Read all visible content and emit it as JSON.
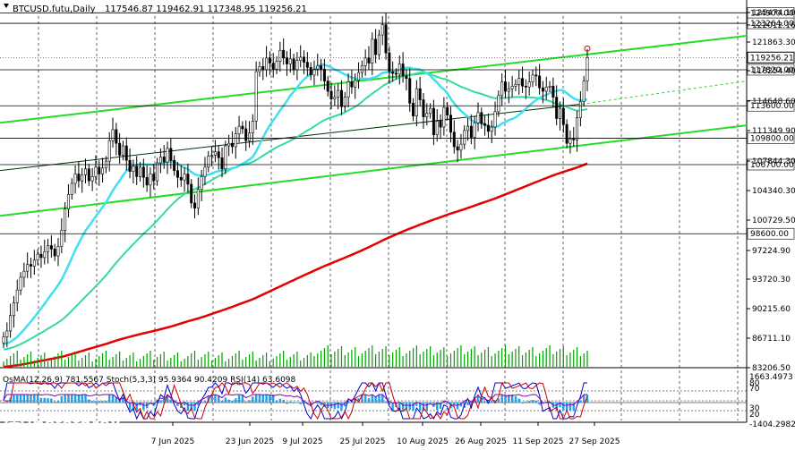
{
  "chart_data": {
    "type": "candlestick",
    "title": "BTCUSD.futu,Daily",
    "ohlc_header": "117546.87 119462.91 117348.95 119256.21",
    "current_price": 119256.21,
    "y_ticks": [
      "125474.10",
      "122012.16",
      "121863.30",
      "118254.40",
      "114648.60",
      "111349.90",
      "107844.30",
      "104340.30",
      "100729.50",
      "97224.90",
      "93720.30",
      "90215.60",
      "86711.10",
      "83206.50"
    ],
    "levels": [
      {
        "label": "124500.00",
        "value": 124500
      },
      {
        "label": "123264.00",
        "value": 123264
      },
      {
        "label": "117820.00",
        "value": 117820
      },
      {
        "label": "113600.00",
        "value": 113600
      },
      {
        "label": "109800.00",
        "value": 109800
      },
      {
        "label": "106700.00",
        "value": 106700
      },
      {
        "label": "98600.00",
        "value": 98600
      }
    ],
    "x_labels": [
      "7 Jun 2025",
      "23 Jun 2025",
      "9 Jul 2025",
      "25 Jul 2025",
      "10 Aug 2025",
      "26 Aug 2025",
      "11 Sep 2025",
      "27 Sep 2025"
    ],
    "close": [
      86500,
      87200,
      89000,
      90500,
      92000,
      93500,
      94200,
      95000,
      94800,
      95500,
      96200,
      95800,
      96500,
      97200,
      96800,
      96000,
      97100,
      99000,
      101500,
      103200,
      104500,
      105600,
      104800,
      105500,
      106200,
      104800,
      105300,
      106400,
      105600,
      106300,
      107100,
      109500,
      110800,
      109200,
      107800,
      108900,
      107200,
      105900,
      106500,
      105300,
      106400,
      105200,
      104300,
      105600,
      104800,
      106900,
      107600,
      107000,
      108600,
      107200,
      106000,
      105200,
      104900,
      105600,
      104400,
      102200,
      101600,
      103800,
      105300,
      106400,
      107700,
      107800,
      108200,
      107500,
      106200,
      108900,
      109200,
      108800,
      110300,
      111200,
      110900,
      109500,
      110400,
      111800,
      117600,
      118200,
      117800,
      119200,
      118600,
      117900,
      118800,
      120100,
      119200,
      118500,
      119100,
      117800,
      118900,
      119300,
      118700,
      118100,
      117200,
      117900,
      118300,
      117900,
      116500,
      115300,
      114400,
      114600,
      115400,
      113500,
      114600,
      116400,
      115800,
      116600,
      117500,
      118300,
      119200,
      118600,
      121400,
      119600,
      121900,
      123100,
      119800,
      117600,
      117400,
      117300,
      118500,
      117100,
      116800,
      113900,
      112400,
      115600,
      114300,
      112300,
      112700,
      113300,
      110200,
      111800,
      111100,
      113400,
      112500,
      110500,
      108800,
      108400,
      109100,
      110700,
      111200,
      109900,
      111600,
      112800,
      111500,
      111300,
      110600,
      111100,
      112900,
      114800,
      116400,
      115300,
      115600,
      115900,
      116100,
      116800,
      115900,
      115800,
      116400,
      117200,
      117100,
      115700,
      115300,
      115800,
      115900,
      114600,
      112100,
      113300,
      111400,
      109200,
      109700,
      109600,
      112200,
      114100,
      116500,
      119256
    ],
    "rsi_label": "RSI(14) 63.6098",
    "osma_label": "OsMA(12,26,9) 781.5567",
    "stoch_label": "Stoch(5,3,3) 95.9364 90.4209",
    "sub_ticks": [
      "1663.4973",
      "-1404.2982",
      "70",
      "30",
      "80",
      "20"
    ]
  },
  "watermark": {
    "brand": "instaforex",
    "tagline": "Instant Forex Trading"
  },
  "colors": {
    "ma_red": "#e60000",
    "ma_cyan": "#40e0f0",
    "ma_teal": "#33dd99",
    "channel_green": "#22dd22",
    "trend_dark": "#003300",
    "osma_hist": "#22a0e8",
    "stoch_blue": "#0000cc",
    "rsi_purple": "#8800aa"
  }
}
